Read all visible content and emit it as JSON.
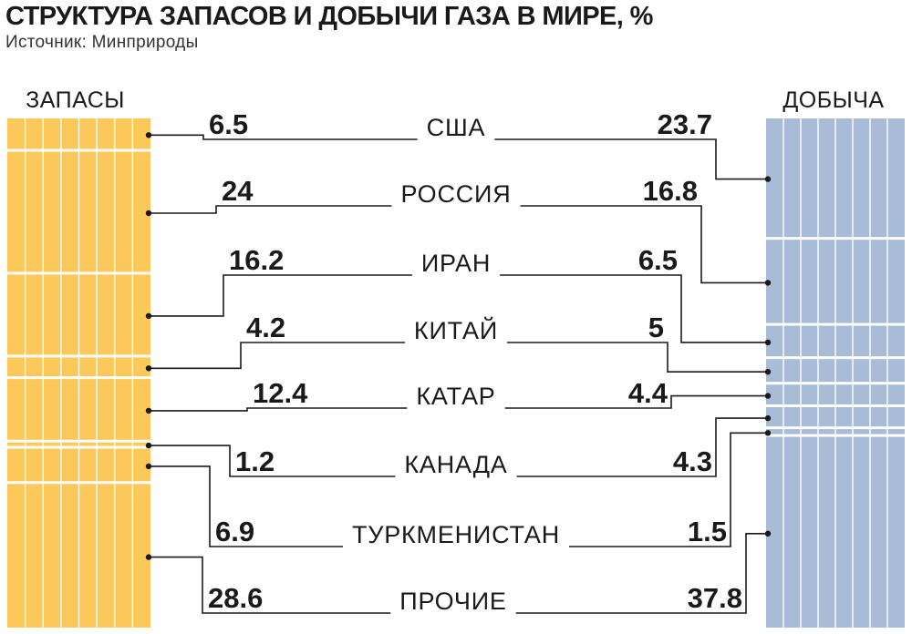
{
  "title": "СТРУКТУРА ЗАПАСОВ И ДОБЫЧИ ГАЗА В МИРЕ, %",
  "subtitle": "Источник: Минприроды",
  "colors": {
    "reserves": "#fcc85a",
    "production": "#a8bcd8",
    "line": "#1a1a1a"
  },
  "chart_data": {
    "type": "bar",
    "stacked": true,
    "title": "СТРУКТУРА ЗАПАСОВ И ДОБЫЧИ ГАЗА В МИРЕ, %",
    "categories": [
      "США",
      "РОССИЯ",
      "ИРАН",
      "КИТАЙ",
      "КАТАР",
      "КАНАДА",
      "ТУРКМЕНИСТАН",
      "ПРОЧИЕ"
    ],
    "series": [
      {
        "name": "ЗАПАСЫ",
        "values": [
          6.5,
          24,
          16.2,
          4.2,
          12.4,
          1.2,
          6.9,
          28.6
        ]
      },
      {
        "name": "ДОБЫЧА",
        "values": [
          23.7,
          16.8,
          6.5,
          5,
          4.4,
          4.3,
          1.5,
          37.8
        ]
      }
    ],
    "value_labels": {
      "ЗАПАСЫ": [
        "6.5",
        "24",
        "16.2",
        "4.2",
        "12.4",
        "1.2",
        "6.9",
        "28.6"
      ],
      "ДОБЫЧА": [
        "23.7",
        "16.8",
        "6.5",
        "5",
        "4.4",
        "4.3",
        "1.5",
        "37.8"
      ]
    }
  }
}
